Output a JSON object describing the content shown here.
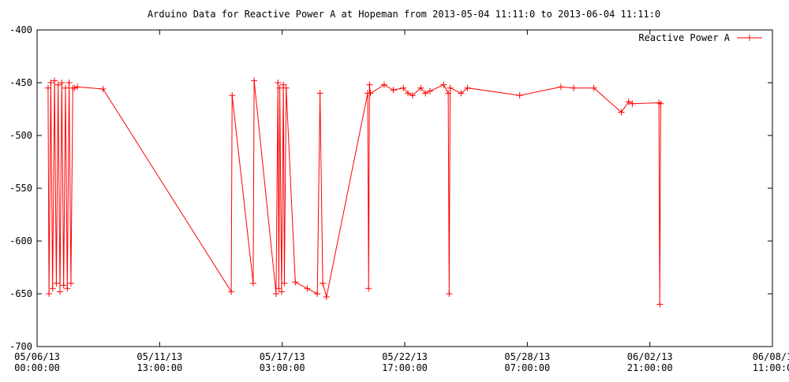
{
  "chart_data": {
    "type": "line",
    "title": "Arduino Data for Reactive Power A at Hopeman from 2013-05-04 11:11:0 to 2013-06-04 11:11:0",
    "xlabel": "",
    "ylabel": "",
    "ylim": [
      -700,
      -400
    ],
    "yticks": [
      -400,
      -450,
      -500,
      -550,
      -600,
      -650,
      -700
    ],
    "xlim": [
      "2013-05-06 00:00:00",
      "2013-06-08 11:00:00"
    ],
    "xticks": [
      {
        "line1": "05/06/13",
        "line2": "00:00:00"
      },
      {
        "line1": "05/11/13",
        "line2": "13:00:00"
      },
      {
        "line1": "05/17/13",
        "line2": "03:00:00"
      },
      {
        "line1": "05/22/13",
        "line2": "17:00:00"
      },
      {
        "line1": "05/28/13",
        "line2": "07:00:00"
      },
      {
        "line1": "06/02/13",
        "line2": "21:00:00"
      },
      {
        "line1": "06/08/1",
        "line2": "11:00:0"
      }
    ],
    "grid": false,
    "legend": {
      "position": "top-right"
    },
    "series": [
      {
        "name": "Reactive Power A",
        "color": "#ff0000",
        "marker": "plus",
        "points": [
          [
            "2013-05-06 12:00",
            -455
          ],
          [
            "2013-05-06 13:00",
            -650
          ],
          [
            "2013-05-06 15:00",
            -450
          ],
          [
            "2013-05-06 17:00",
            -645
          ],
          [
            "2013-05-06 19:00",
            -448
          ],
          [
            "2013-05-06 21:00",
            -640
          ],
          [
            "2013-05-06 23:00",
            -452
          ],
          [
            "2013-05-07 01:00",
            -648
          ],
          [
            "2013-05-07 03:00",
            -450
          ],
          [
            "2013-05-07 05:00",
            -642
          ],
          [
            "2013-05-07 07:00",
            -455
          ],
          [
            "2013-05-07 09:00",
            -645
          ],
          [
            "2013-05-07 11:00",
            -450
          ],
          [
            "2013-05-07 13:00",
            -640
          ],
          [
            "2013-05-07 15:00",
            -455
          ],
          [
            "2013-05-07 17:00",
            -455
          ],
          [
            "2013-05-07 20:00",
            -454
          ],
          [
            "2013-05-09 00:00",
            -456
          ],
          [
            "2013-05-14 20:00",
            -648
          ],
          [
            "2013-05-14 21:00",
            -462
          ],
          [
            "2013-05-15 20:00",
            -640
          ],
          [
            "2013-05-15 21:00",
            -448
          ],
          [
            "2013-05-16 21:00",
            -650
          ],
          [
            "2013-05-16 23:00",
            -450
          ],
          [
            "2013-05-17 00:00",
            -645
          ],
          [
            "2013-05-17 01:00",
            -455
          ],
          [
            "2013-05-17 03:00",
            -648
          ],
          [
            "2013-05-17 05:00",
            -452
          ],
          [
            "2013-05-17 06:00",
            -640
          ],
          [
            "2013-05-17 08:00",
            -455
          ],
          [
            "2013-05-17 18:00",
            -639
          ],
          [
            "2013-05-18 07:00",
            -645
          ],
          [
            "2013-05-18 18:00",
            -650
          ],
          [
            "2013-05-18 21:00",
            -460
          ],
          [
            "2013-05-19 00:00",
            -640
          ],
          [
            "2013-05-19 04:00",
            -653
          ],
          [
            "2013-05-21 01:00",
            -460
          ],
          [
            "2013-05-21 02:00",
            -645
          ],
          [
            "2013-05-21 03:00",
            -452
          ],
          [
            "2013-05-21 04:00",
            -460
          ],
          [
            "2013-05-21 19:00",
            -452
          ],
          [
            "2013-05-22 05:00",
            -457
          ],
          [
            "2013-05-22 16:00",
            -455
          ],
          [
            "2013-05-22 21:00",
            -460
          ],
          [
            "2013-05-23 02:00",
            -462
          ],
          [
            "2013-05-23 11:00",
            -455
          ],
          [
            "2013-05-23 16:00",
            -460
          ],
          [
            "2013-05-23 21:00",
            -458
          ],
          [
            "2013-05-24 12:00",
            -452
          ],
          [
            "2013-05-24 17:00",
            -460
          ],
          [
            "2013-05-24 18:00",
            -650
          ],
          [
            "2013-05-24 19:00",
            -455
          ],
          [
            "2013-05-25 07:00",
            -460
          ],
          [
            "2013-05-25 14:00",
            -455
          ],
          [
            "2013-05-27 23:00",
            -462
          ],
          [
            "2013-05-29 20:00",
            -454
          ],
          [
            "2013-05-30 10:00",
            -455
          ],
          [
            "2013-05-31 08:00",
            -455
          ],
          [
            "2013-06-01 14:00",
            -478
          ],
          [
            "2013-06-01 22:00",
            -468
          ],
          [
            "2013-06-02 02:00",
            -470
          ],
          [
            "2013-06-03 07:00",
            -469
          ],
          [
            "2013-06-03 08:00",
            -660
          ],
          [
            "2013-06-03 09:00",
            -470
          ]
        ]
      }
    ]
  }
}
